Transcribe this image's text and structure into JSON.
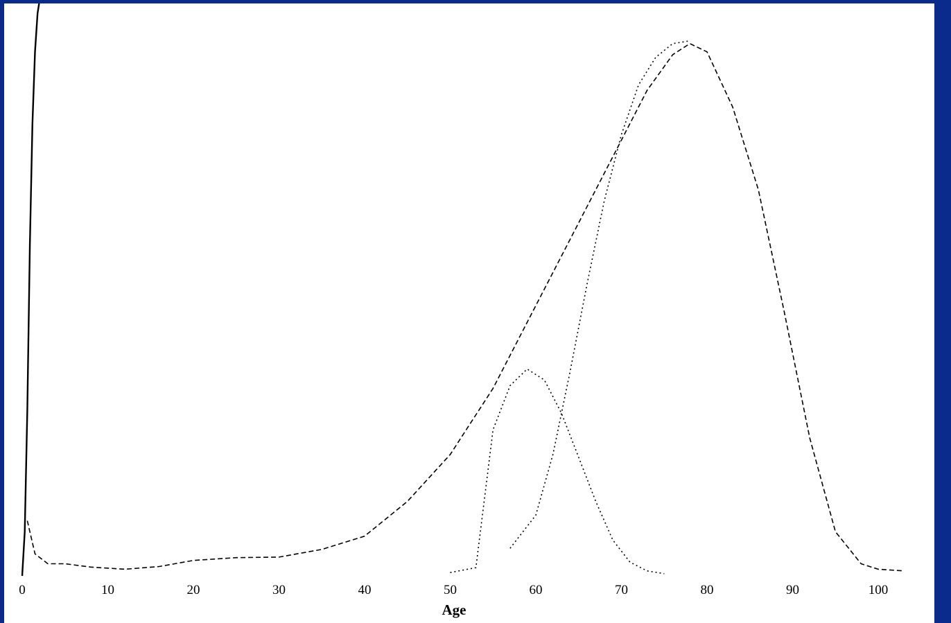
{
  "chart_data": {
    "type": "line",
    "title": "",
    "xlabel": "Age",
    "ylabel": "",
    "xlim": [
      0,
      105
    ],
    "ylim": [
      0,
      100
    ],
    "xticks": [
      0,
      10,
      20,
      30,
      40,
      50,
      60,
      70,
      80,
      90,
      100
    ],
    "grid": false,
    "legend": "none",
    "colors": {
      "background": "#0a2a8c",
      "plot": "#ffffff",
      "line": "#000000"
    },
    "series": [
      {
        "style": "solid",
        "x": [
          0.0,
          0.3,
          0.6,
          0.9,
          1.2,
          1.5,
          1.8,
          2.0
        ],
        "y": [
          0,
          8,
          30,
          60,
          82,
          95,
          102,
          104
        ]
      },
      {
        "style": "dashed",
        "x": [
          0.6,
          1.5,
          3,
          5,
          8,
          12,
          16,
          20,
          25,
          30,
          35,
          40,
          45,
          50,
          55,
          60,
          65,
          70,
          73,
          76,
          78,
          80,
          83,
          86,
          89,
          92,
          95,
          98,
          100,
          103
        ],
        "y": [
          10,
          4,
          2.2,
          2.2,
          1.6,
          1.2,
          1.7,
          2.8,
          3.3,
          3.4,
          4.8,
          7.2,
          13.5,
          22,
          34,
          49,
          64,
          79,
          88,
          94.5,
          96.5,
          95,
          85,
          70,
          48,
          25,
          8,
          2.2,
          1.2,
          0.9
        ]
      },
      {
        "style": "dotted",
        "x": [
          50,
          53,
          55,
          57,
          59,
          61,
          63,
          65,
          67,
          69,
          71,
          73,
          75
        ],
        "y": [
          0.6,
          1.5,
          26.5,
          34.5,
          37.5,
          35.5,
          29.5,
          21.5,
          13.5,
          6.5,
          2.5,
          0.9,
          0.4
        ]
      },
      {
        "style": "dotted",
        "x": [
          57,
          60,
          62,
          64,
          66,
          68,
          70,
          72,
          74,
          76,
          78
        ],
        "y": [
          5,
          11,
          22,
          37,
          53,
          68,
          80,
          89,
          94,
          96.5,
          97
        ]
      }
    ]
  }
}
